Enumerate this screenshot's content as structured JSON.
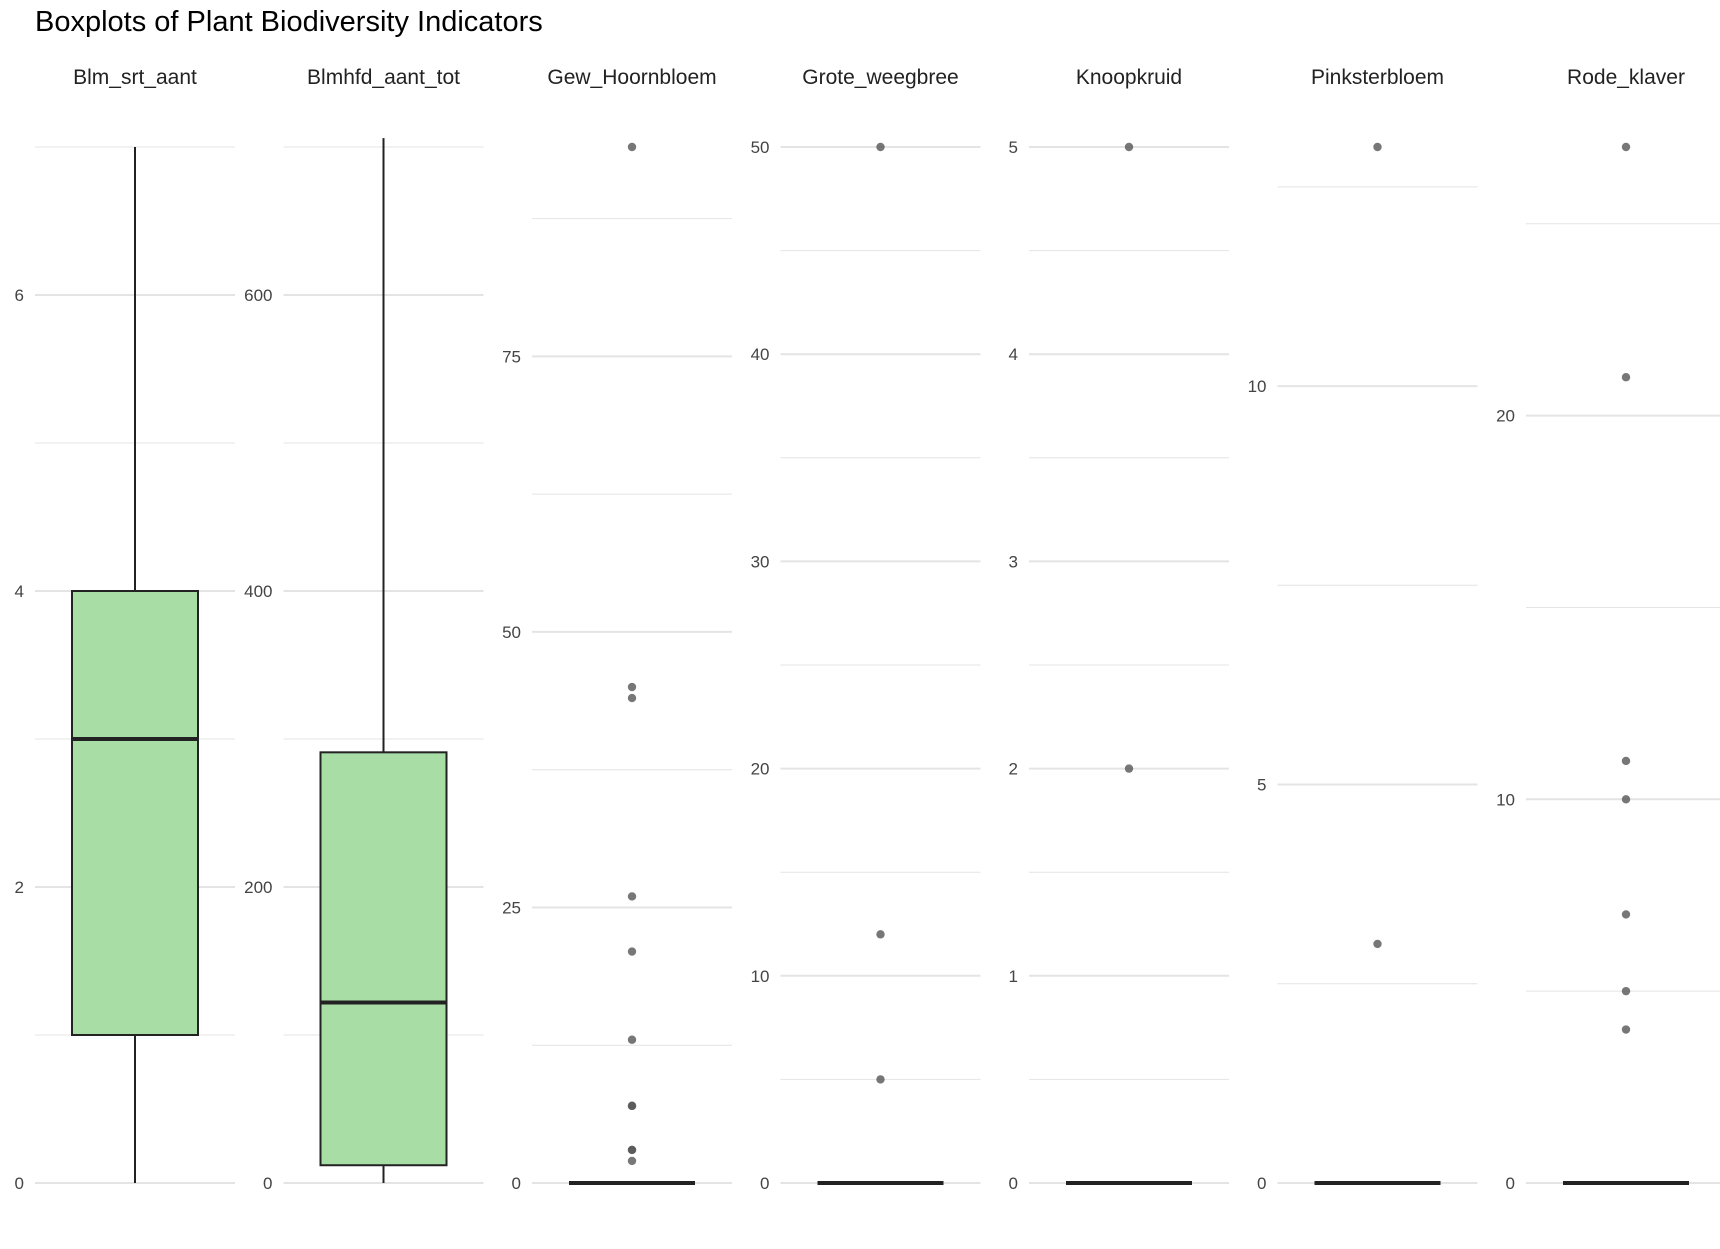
{
  "chart_data": {
    "type": "boxplot",
    "title": "Boxplots of Plant Biodiversity Indicators",
    "grid": true,
    "legend": "none",
    "colors": {
      "box_fill": "#a8dda5",
      "box_stroke": "#222222",
      "outlier": "#555555",
      "grid": "#e4e4e4",
      "text": "#444444"
    },
    "panels": [
      {
        "name": "Blm_srt_aant",
        "ylim": [
          0,
          7
        ],
        "major_ticks": [
          0,
          2,
          4,
          6
        ],
        "minor_ticks": [
          1,
          3,
          5,
          7
        ],
        "box": {
          "min": 0,
          "q1": 1,
          "median": 3,
          "q3": 4,
          "max": 7
        },
        "outliers": []
      },
      {
        "name": "Blmhfd_aant_tot",
        "ylim": [
          0,
          700
        ],
        "major_ticks": [
          0,
          200,
          400,
          600
        ],
        "minor_ticks": [
          100,
          300,
          500,
          700
        ],
        "box": {
          "min": 0,
          "q1": 12,
          "median": 122,
          "q3": 291,
          "max": 706
        },
        "outliers": []
      },
      {
        "name": "Gew_Hoornbloem",
        "ylim": [
          0,
          94
        ],
        "major_ticks": [
          0,
          25,
          50,
          75
        ],
        "minor_ticks": [
          12.5,
          37.5,
          62.5,
          87.5
        ],
        "box": {
          "min": 0,
          "q1": 0,
          "median": 0,
          "q3": 0,
          "max": 0
        },
        "outliers": [
          94,
          45,
          44,
          26,
          21,
          13,
          7,
          7,
          3,
          3,
          2
        ]
      },
      {
        "name": "Grote_weegbree",
        "ylim": [
          0,
          50
        ],
        "major_ticks": [
          0,
          10,
          20,
          30,
          40,
          50
        ],
        "minor_ticks": [
          5,
          15,
          25,
          35,
          45
        ],
        "box": {
          "min": 0,
          "q1": 0,
          "median": 0,
          "q3": 0,
          "max": 0
        },
        "outliers": [
          50,
          12,
          5
        ]
      },
      {
        "name": "Knoopkruid",
        "ylim": [
          0,
          5
        ],
        "major_ticks": [
          0,
          1,
          2,
          3,
          4,
          5
        ],
        "minor_ticks": [
          0.5,
          1.5,
          2.5,
          3.5,
          4.5
        ],
        "box": {
          "min": 0,
          "q1": 0,
          "median": 0,
          "q3": 0,
          "max": 0
        },
        "outliers": [
          5,
          2
        ]
      },
      {
        "name": "Pinksterbloem",
        "ylim": [
          0,
          13
        ],
        "major_ticks": [
          0,
          5,
          10
        ],
        "minor_ticks": [
          2.5,
          7.5,
          12.5
        ],
        "box": {
          "min": 0,
          "q1": 0,
          "median": 0,
          "q3": 0,
          "max": 0
        },
        "outliers": [
          13,
          3
        ]
      },
      {
        "name": "Rode_klaver",
        "ylim": [
          0,
          27
        ],
        "major_ticks": [
          0,
          10,
          20
        ],
        "minor_ticks": [
          5,
          15,
          25
        ],
        "box": {
          "min": 0,
          "q1": 0,
          "median": 0,
          "q3": 0,
          "max": 0
        },
        "outliers": [
          27,
          21,
          11,
          10,
          7,
          5,
          4
        ]
      }
    ]
  }
}
